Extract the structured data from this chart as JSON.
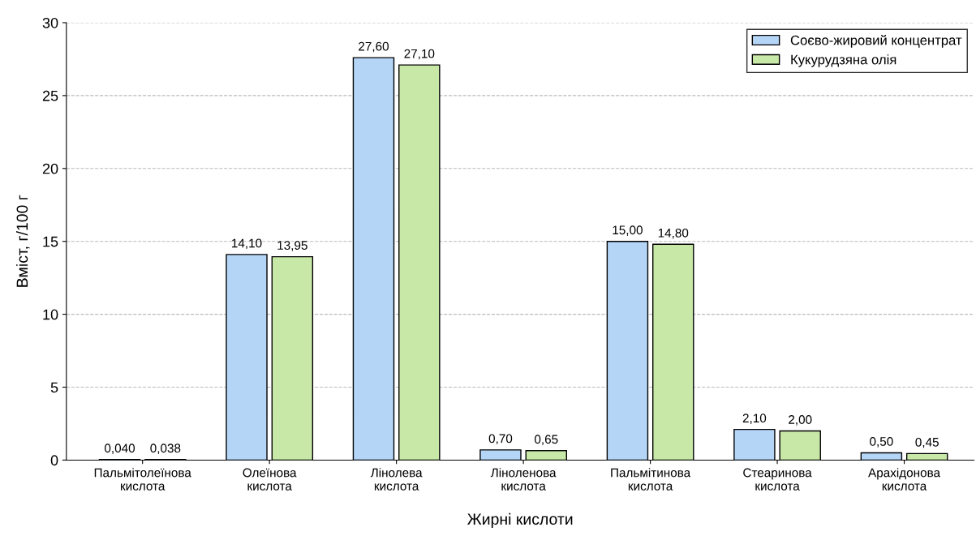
{
  "chart_data": {
    "type": "bar",
    "xlabel": "Жирні кислоти",
    "ylabel": "Вміст, г/100 г",
    "categories": [
      "Пальмітолеїнова\nкислота",
      "Олеїнова\nкислота",
      "Лінолева\nкислота",
      "Ліноленова\nкислота",
      "Пальмітинова\nкислота",
      "Стеаринова\nкислота",
      "Арахідонова\nкислота"
    ],
    "series": [
      {
        "name": "Соєво-жировий концентрат",
        "color": "#b5d5f7",
        "values": [
          0.04,
          14.1,
          27.6,
          0.7,
          15.0,
          2.1,
          0.5
        ],
        "value_labels": [
          "0,040",
          "14,10",
          "27,60",
          "0,70",
          "15,00",
          "2,10",
          "0,50"
        ]
      },
      {
        "name": "Кукурудзяна олія",
        "color": "#c8e8a8",
        "values": [
          0.038,
          13.95,
          27.1,
          0.65,
          14.8,
          2.0,
          0.45
        ],
        "value_labels": [
          "0,038",
          "13,95",
          "27,10",
          "0,65",
          "14,80",
          "2,00",
          "0,45"
        ]
      }
    ],
    "ylim": [
      0,
      30
    ],
    "yticks": [
      0,
      5,
      10,
      15,
      20,
      25,
      30
    ],
    "grid": "y",
    "legend": "top right"
  }
}
